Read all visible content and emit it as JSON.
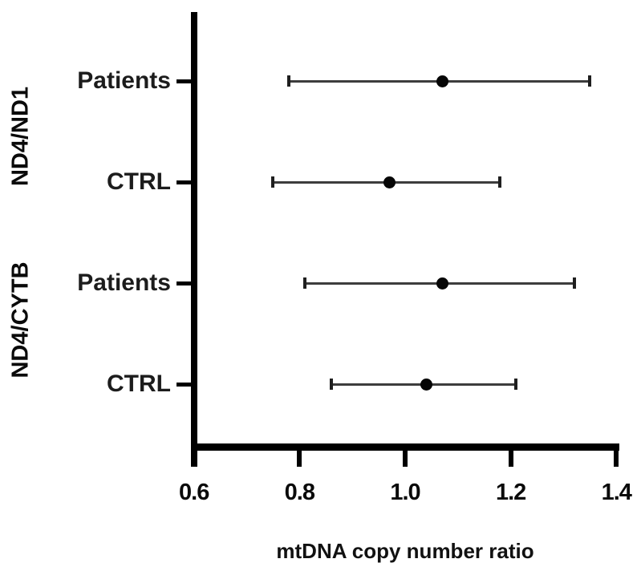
{
  "chart_data": {
    "type": "scatter",
    "subtype": "forest-plot-horizontal-error-bars",
    "title": "",
    "xlabel": "mtDNA copy number ratio",
    "ylabel": "",
    "xlim": [
      0.6,
      1.4
    ],
    "xticks": [
      0.6,
      0.8,
      1.0,
      1.2,
      1.4
    ],
    "xtick_labels": [
      "0.6",
      "0.8",
      "1.0",
      "1.2",
      "1.4"
    ],
    "grid": false,
    "legend": false,
    "groups": [
      {
        "label": "ND4/ND1",
        "rows": [
          {
            "label": "Patients",
            "mean": 1.07,
            "ci_low": 0.78,
            "ci_high": 1.35
          },
          {
            "label": "CTRL",
            "mean": 0.97,
            "ci_low": 0.75,
            "ci_high": 1.18
          }
        ]
      },
      {
        "label": "ND4/CYTB",
        "rows": [
          {
            "label": "Patients",
            "mean": 1.07,
            "ci_low": 0.81,
            "ci_high": 1.32
          },
          {
            "label": "CTRL",
            "mean": 1.04,
            "ci_low": 0.86,
            "ci_high": 1.21
          }
        ]
      }
    ],
    "colors": {
      "axis": "#000000",
      "marker": "#060606",
      "error_line": "#3d3d3d",
      "error_cap": "#1f1f1f",
      "text": "#0a0a0a",
      "background": "#ffffff"
    }
  }
}
